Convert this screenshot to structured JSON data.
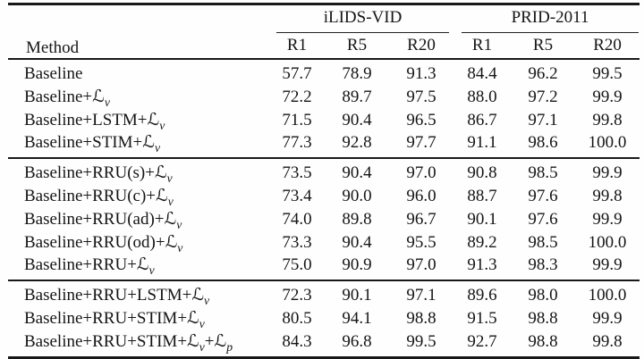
{
  "table": {
    "method_header": "Method",
    "groups": [
      {
        "label": "iLIDS-VID",
        "cols": [
          "R1",
          "R5",
          "R20"
        ]
      },
      {
        "label": "PRID-2011",
        "cols": [
          "R1",
          "R5",
          "R20"
        ]
      }
    ],
    "blocks": [
      {
        "rows": [
          {
            "method": "Baseline",
            "values": [
              "57.7",
              "78.9",
              "91.3",
              "84.4",
              "96.2",
              "99.5"
            ]
          },
          {
            "method": "Baseline+ℒ_v",
            "values": [
              "72.2",
              "89.7",
              "97.5",
              "88.0",
              "97.2",
              "99.9"
            ]
          },
          {
            "method": "Baseline+LSTM+ℒ_v",
            "values": [
              "71.5",
              "90.4",
              "96.5",
              "86.7",
              "97.1",
              "99.8"
            ]
          },
          {
            "method": "Baseline+STIM+ℒ_v",
            "values": [
              "77.3",
              "92.8",
              "97.7",
              "91.1",
              "98.6",
              "100.0"
            ]
          }
        ]
      },
      {
        "rows": [
          {
            "method": "Baseline+RRU(s)+ℒ_v",
            "values": [
              "73.5",
              "90.4",
              "97.0",
              "90.8",
              "98.5",
              "99.9"
            ]
          },
          {
            "method": "Baseline+RRU(c)+ℒ_v",
            "values": [
              "73.4",
              "90.0",
              "96.0",
              "88.7",
              "97.6",
              "99.8"
            ]
          },
          {
            "method": "Baseline+RRU(ad)+ℒ_v",
            "values": [
              "74.0",
              "89.8",
              "96.7",
              "90.1",
              "97.6",
              "99.9"
            ]
          },
          {
            "method": "Baseline+RRU(od)+ℒ_v",
            "values": [
              "73.3",
              "90.4",
              "95.5",
              "89.2",
              "98.5",
              "100.0"
            ]
          },
          {
            "method": "Baseline+RRU+ℒ_v",
            "values": [
              "75.0",
              "90.9",
              "97.0",
              "91.3",
              "98.3",
              "99.9"
            ]
          }
        ]
      },
      {
        "rows": [
          {
            "method": "Baseline+RRU+LSTM+ℒ_v",
            "values": [
              "72.3",
              "90.1",
              "97.1",
              "89.6",
              "98.0",
              "100.0"
            ]
          },
          {
            "method": "Baseline+RRU+STIM+ℒ_v",
            "values": [
              "80.5",
              "94.1",
              "98.8",
              "91.5",
              "98.8",
              "99.9"
            ]
          },
          {
            "method": "Baseline+RRU+STIM+ℒ_v+ℒ_p",
            "values": [
              "84.3",
              "96.8",
              "99.5",
              "92.7",
              "98.8",
              "99.8"
            ]
          }
        ]
      }
    ]
  },
  "colors": {
    "rule": "#181818",
    "text": "#151515",
    "background": "#fefefe"
  }
}
